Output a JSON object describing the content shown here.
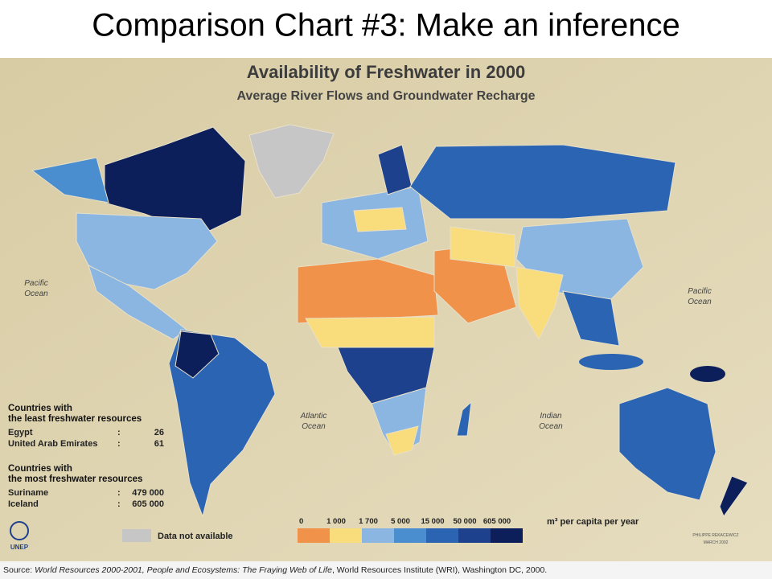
{
  "slide_title": "Comparison Chart #3: Make an inference",
  "map": {
    "title": "Availability of Freshwater in 2000",
    "subtitle": "Average River Flows and Groundwater Recharge",
    "oceans": [
      [
        "Pacific",
        "Ocean"
      ],
      [
        "Pacific",
        "Ocean"
      ],
      [
        "Atlantic",
        "Ocean"
      ],
      [
        "Indian",
        "Ocean"
      ]
    ]
  },
  "info": {
    "least_heading": [
      "Countries with",
      "the least freshwater resources"
    ],
    "least": [
      [
        "Egypt",
        ":",
        "26"
      ],
      [
        "United Arab Emirates",
        ":",
        "61"
      ]
    ],
    "most_heading": [
      "Countries with",
      "the most freshwater resources"
    ],
    "most": [
      [
        "Suriname",
        ":",
        "479 000"
      ],
      [
        "Iceland",
        ":",
        "605 000"
      ]
    ]
  },
  "legend": {
    "ticks": [
      "0",
      "1 000",
      "1 700",
      "5 000",
      "15 000",
      "50 000",
      "605 000"
    ],
    "colors": [
      "#f0924a",
      "#f9dc7c",
      "#8cb6e2",
      "#4a8ed0",
      "#2a64b2",
      "#1d418c",
      "#0c1f5a"
    ],
    "unit": "m³ per capita per year",
    "na_label": "Data not available",
    "na_color": "#c6c6c6"
  },
  "logo": "UNEP",
  "credit": [
    "PHILIPPE REKACEWICZ",
    "MARCH 2002"
  ],
  "source": [
    "Source: ",
    "World Resources 2000-2001, People and Ecosystems: The Fraying Web of Life",
    ", World Resources Institute (WRI), Washington DC, 2000."
  ]
}
